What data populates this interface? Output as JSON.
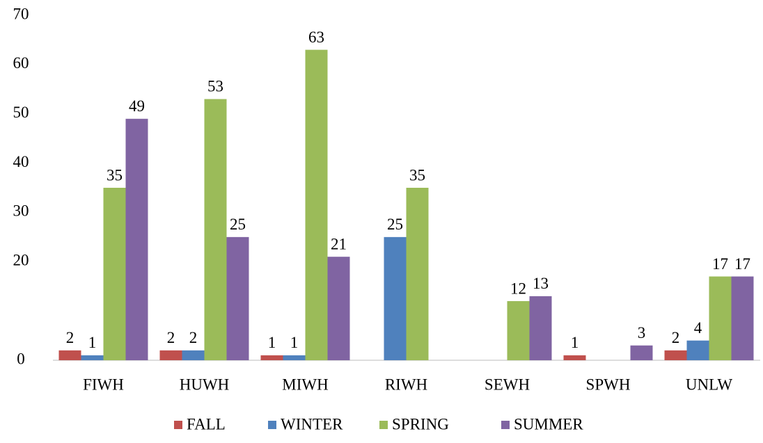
{
  "chart_data": {
    "type": "bar",
    "categories": [
      "FIWH",
      "HUWH",
      "MIWH",
      "RIWH",
      "SEWH",
      "SPWH",
      "UNLW"
    ],
    "series": [
      {
        "name": "FALL",
        "color": "#c0504d",
        "values": [
          2,
          2,
          1,
          null,
          null,
          1,
          2
        ]
      },
      {
        "name": "WINTER",
        "color": "#4f81bd",
        "values": [
          1,
          2,
          1,
          25,
          null,
          null,
          4
        ]
      },
      {
        "name": "SPRING",
        "color": "#9bbb59",
        "values": [
          35,
          53,
          63,
          35,
          12,
          null,
          17
        ]
      },
      {
        "name": "SUMMER",
        "color": "#8064a2",
        "values": [
          49,
          25,
          21,
          null,
          13,
          3,
          17
        ]
      }
    ],
    "ylim": [
      0,
      70
    ],
    "yticks": [
      0,
      20,
      30,
      40,
      50,
      60,
      70
    ],
    "grid": false,
    "legend": "bottom"
  }
}
